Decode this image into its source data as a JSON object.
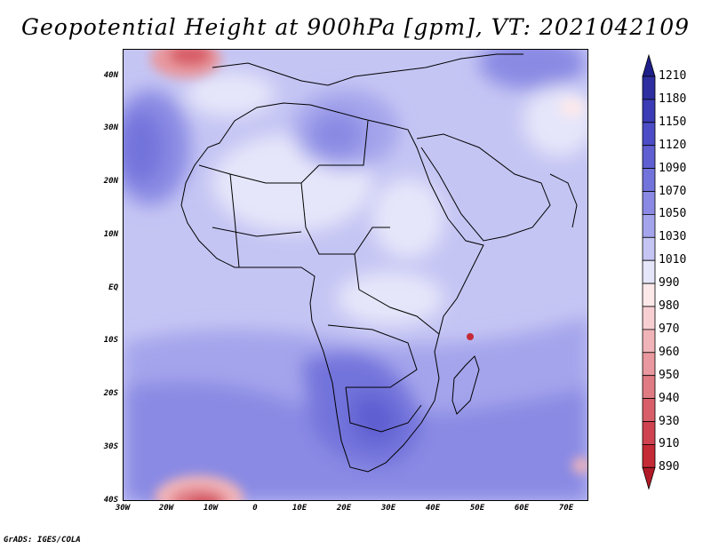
{
  "title": "Geopotential Height at 900hPa [gpm], VT: 2021042109",
  "footer": "GrADS: IGES/COLA",
  "map": {
    "lat_ticks": [
      "40N",
      "30N",
      "20N",
      "10N",
      "EQ",
      "10S",
      "20S",
      "30S",
      "40S"
    ],
    "lon_ticks": [
      "30W",
      "20W",
      "10W",
      "0",
      "10E",
      "20E",
      "30E",
      "40E",
      "50E",
      "60E",
      "70E"
    ],
    "region": "Africa"
  },
  "colorbar": {
    "levels": [
      "1210",
      "1180",
      "1150",
      "1120",
      "1090",
      "1070",
      "1050",
      "1030",
      "1010",
      "990",
      "980",
      "970",
      "960",
      "950",
      "940",
      "930",
      "910",
      "890"
    ],
    "colors": [
      "#1f1f8a",
      "#2e2ea0",
      "#3b3bb5",
      "#4c4cc6",
      "#5f5fd2",
      "#7373dc",
      "#8a8ae4",
      "#a4a4ec",
      "#c5c5f4",
      "#e6e6fa",
      "#fde9ea",
      "#f7cfd2",
      "#f0b4b8",
      "#e8989e",
      "#e07b83",
      "#d85f69",
      "#cf4350",
      "#c42b36",
      "#b01a26"
    ]
  }
}
